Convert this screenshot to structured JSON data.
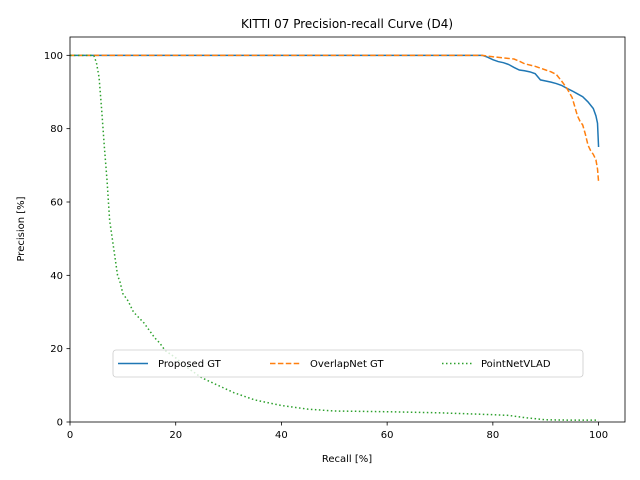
{
  "chart_data": {
    "type": "line",
    "title": "KITTI 07 Precision-recall Curve (D4)",
    "xlabel": "Recall [%]",
    "ylabel": "Precision [%]",
    "xlim": [
      0,
      105
    ],
    "ylim": [
      0,
      105
    ],
    "xticks": [
      0,
      20,
      40,
      60,
      80,
      100
    ],
    "yticks": [
      0,
      20,
      40,
      60,
      80,
      100
    ],
    "grid": false,
    "legend_placement": "lower-center",
    "series": [
      {
        "name": "Proposed GT",
        "color": "#1f77b4",
        "style": "solid",
        "x": [
          0,
          78,
          79,
          80,
          81,
          82,
          83,
          84,
          85,
          86,
          87,
          88,
          89,
          90,
          91,
          92,
          93,
          94,
          95,
          96,
          97,
          98,
          99,
          99.5,
          99.8,
          100
        ],
        "y": [
          100,
          100,
          99.5,
          98.8,
          98.3,
          98.0,
          97.5,
          96.7,
          96.0,
          95.8,
          95.5,
          95.0,
          93.3,
          93.0,
          92.7,
          92.3,
          91.8,
          91.0,
          90.3,
          89.5,
          88.7,
          87.3,
          85.5,
          83.5,
          81.5,
          75
        ]
      },
      {
        "name": "OverlapNet GT",
        "color": "#ff7f0e",
        "style": "dashed",
        "x": [
          0,
          77,
          78,
          80,
          82,
          84,
          85,
          86,
          88,
          90,
          91,
          92,
          93,
          94,
          95,
          95.5,
          96,
          96.5,
          97,
          97.5,
          98,
          98.5,
          99,
          99.5,
          99.8,
          100
        ],
        "y": [
          100,
          100,
          100,
          99.6,
          99.3,
          99.0,
          98.4,
          97.7,
          97.0,
          96.0,
          95.5,
          94.8,
          93.0,
          91.0,
          88.5,
          86.0,
          83.5,
          82.0,
          81.0,
          78.5,
          75.5,
          74.0,
          73.0,
          71.5,
          69.0,
          65.5
        ]
      },
      {
        "name": "PointNetVLAD",
        "color": "#2ca02c",
        "style": "dotted",
        "x": [
          0,
          4.5,
          5,
          5.5,
          6,
          6.5,
          7,
          7.5,
          8,
          8.5,
          9,
          9.5,
          10,
          11,
          12,
          13,
          14,
          15,
          16,
          17,
          18,
          20,
          22,
          25,
          28,
          31,
          35,
          40,
          45,
          50,
          60,
          70,
          80,
          83,
          86,
          90,
          95,
          100
        ],
        "y": [
          100,
          100,
          98,
          94,
          85,
          75,
          66,
          55,
          50,
          45,
          40,
          38,
          35,
          33,
          30,
          28.5,
          27,
          25,
          23,
          21.5,
          19.5,
          17.5,
          15,
          12,
          10,
          8,
          6,
          4.5,
          3.5,
          3,
          2.8,
          2.5,
          2,
          1.8,
          1.2,
          0.6,
          0.5,
          0.5
        ]
      }
    ]
  }
}
